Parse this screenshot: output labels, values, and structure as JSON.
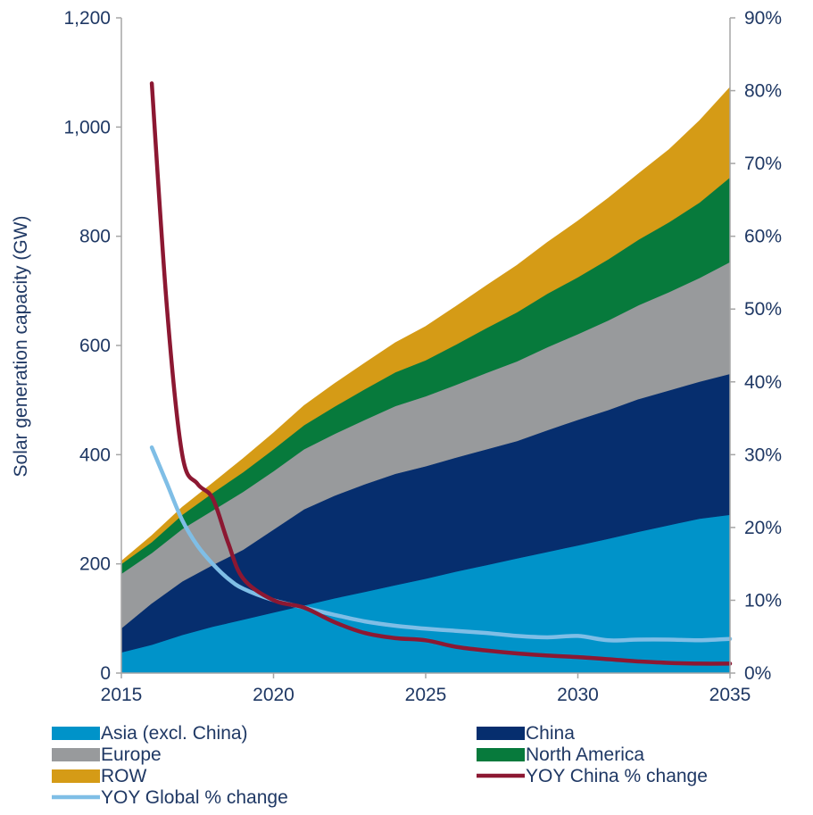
{
  "chart_data": {
    "type": "area",
    "title": "",
    "xlabel": "",
    "ylabel": "Solar generation capacity (GW)",
    "y2label": "",
    "xlim": [
      2015,
      2035
    ],
    "ylim": [
      0,
      1200
    ],
    "y2lim": [
      0,
      90
    ],
    "x_ticks": [
      "2015",
      "2020",
      "2025",
      "2030",
      "2035"
    ],
    "y_ticks": [
      "0",
      "200",
      "400",
      "600",
      "800",
      "1,000",
      "1,200"
    ],
    "y2_ticks": [
      "0%",
      "10%",
      "20%",
      "30%",
      "40%",
      "50%",
      "60%",
      "70%",
      "80%",
      "90%"
    ],
    "legend_position": "bottom",
    "x": [
      2015,
      2016,
      2017,
      2018,
      2019,
      2020,
      2021,
      2022,
      2023,
      2024,
      2025,
      2026,
      2027,
      2028,
      2029,
      2030,
      2031,
      2032,
      2033,
      2034,
      2035
    ],
    "stacked_series": [
      {
        "name": "Asia (excl. China)",
        "color": "#0093c9",
        "values": [
          38,
          52,
          70,
          85,
          98,
          111,
          124,
          137,
          149,
          161,
          173,
          186,
          198,
          210,
          222,
          234,
          246,
          259,
          271,
          283,
          290
        ]
      },
      {
        "name": "China",
        "color": "#062e6e",
        "values": [
          44,
          76,
          98,
          113,
          128,
          152,
          176,
          188,
          197,
          204,
          206,
          209,
          212,
          215,
          223,
          230,
          236,
          243,
          247,
          251,
          258
        ]
      },
      {
        "name": "Europe",
        "color": "#989a9c",
        "values": [
          100,
          92,
          96,
          100,
          106,
          107,
          110,
          113,
          118,
          124,
          128,
          133,
          140,
          146,
          152,
          157,
          164,
          172,
          180,
          190,
          205
        ]
      },
      {
        "name": "North America",
        "color": "#077a3c",
        "values": [
          18,
          20,
          26,
          32,
          36,
          40,
          44,
          50,
          56,
          62,
          66,
          74,
          82,
          90,
          98,
          104,
          112,
          120,
          128,
          138,
          155
        ]
      },
      {
        "name": "ROW",
        "color": "#d59b16",
        "values": [
          5,
          12,
          14,
          18,
          25,
          30,
          36,
          42,
          48,
          54,
          62,
          70,
          78,
          86,
          94,
          103,
          112,
          121,
          133,
          150,
          165
        ]
      }
    ],
    "line_series": [
      {
        "name": "YOY China % change",
        "axis": "right",
        "color": "#8c1832",
        "x": [
          2016,
          2016.5,
          2017,
          2017.5,
          2018,
          2018.5,
          2019,
          2020,
          2021,
          2022,
          2023,
          2024,
          2025,
          2026,
          2027,
          2028,
          2029,
          2030,
          2031,
          2032,
          2033,
          2034,
          2035
        ],
        "values": [
          81,
          50,
          30,
          26,
          24,
          18,
          13,
          10,
          9,
          7,
          5.5,
          4.8,
          4.5,
          3.6,
          3.1,
          2.7,
          2.4,
          2.2,
          1.9,
          1.6,
          1.4,
          1.3,
          1.3
        ]
      },
      {
        "name": "YOY Global % change",
        "axis": "right",
        "color": "#7fbee6",
        "x": [
          2016,
          2016.5,
          2017,
          2017.5,
          2018,
          2018.5,
          2019,
          2020,
          2021,
          2022,
          2023,
          2024,
          2025,
          2026,
          2027,
          2028,
          2029,
          2030,
          2031,
          2032,
          2033,
          2034,
          2035
        ],
        "values": [
          31,
          26,
          21,
          17.5,
          15,
          13,
          11.6,
          10,
          9,
          8,
          7.1,
          6.5,
          6.1,
          5.8,
          5.5,
          5.1,
          4.9,
          5.1,
          4.5,
          4.6,
          4.6,
          4.5,
          4.7
        ]
      }
    ]
  }
}
